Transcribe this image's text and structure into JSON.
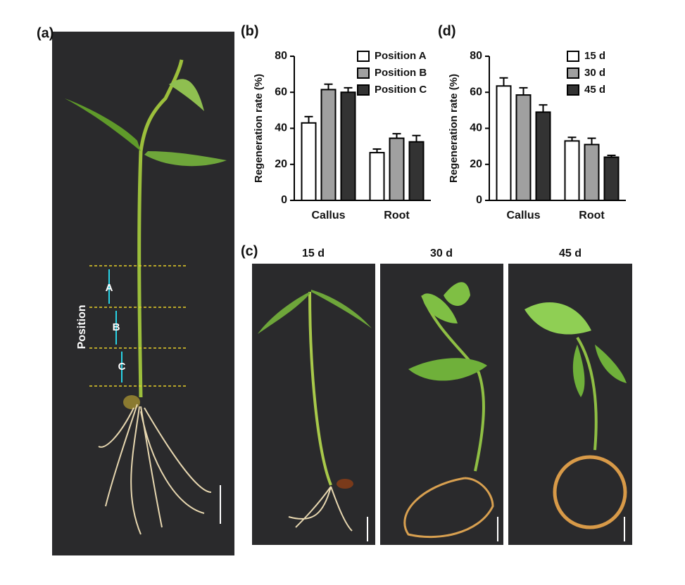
{
  "chart_data": [
    {
      "type": "bar",
      "panel_label": "(b)",
      "y_label": "Regeneration rate (%)",
      "categories": [
        "Callus",
        "Root"
      ],
      "series": [
        {
          "name": "Position A",
          "color": "#ffffff",
          "values": [
            43,
            26.5
          ],
          "errors": [
            3.5,
            2
          ]
        },
        {
          "name": "Position B",
          "color": "#a0a0a0",
          "values": [
            61.5,
            34.5
          ],
          "errors": [
            3,
            2.5
          ]
        },
        {
          "name": "Position C",
          "color": "#333333",
          "values": [
            60,
            32.5
          ],
          "errors": [
            2.5,
            3.5
          ]
        }
      ],
      "ylim": [
        0,
        80
      ],
      "yticks": [
        0,
        20,
        40,
        60,
        80
      ],
      "legend": "upper right"
    },
    {
      "type": "bar",
      "panel_label": "(d)",
      "y_label": "Regeneration rate (%)",
      "categories": [
        "Callus",
        "Root"
      ],
      "series": [
        {
          "name": "15 d",
          "color": "#ffffff",
          "values": [
            63.5,
            33
          ],
          "errors": [
            4.5,
            2
          ]
        },
        {
          "name": "30 d",
          "color": "#a0a0a0",
          "values": [
            58.5,
            31
          ],
          "errors": [
            4,
            3.5
          ]
        },
        {
          "name": "45 d",
          "color": "#333333",
          "values": [
            49,
            24
          ],
          "errors": [
            4,
            1
          ]
        }
      ],
      "ylim": [
        0,
        80
      ],
      "yticks": [
        0,
        20,
        40,
        60,
        80
      ],
      "legend": "upper right"
    }
  ],
  "photo_a": {
    "panel_label": "(a)",
    "position_label": "Position",
    "positions": [
      "A",
      "B",
      "C"
    ]
  },
  "photo_c": {
    "panel_label": "(c)",
    "titles": [
      "15 d",
      "30 d",
      "45 d"
    ]
  }
}
